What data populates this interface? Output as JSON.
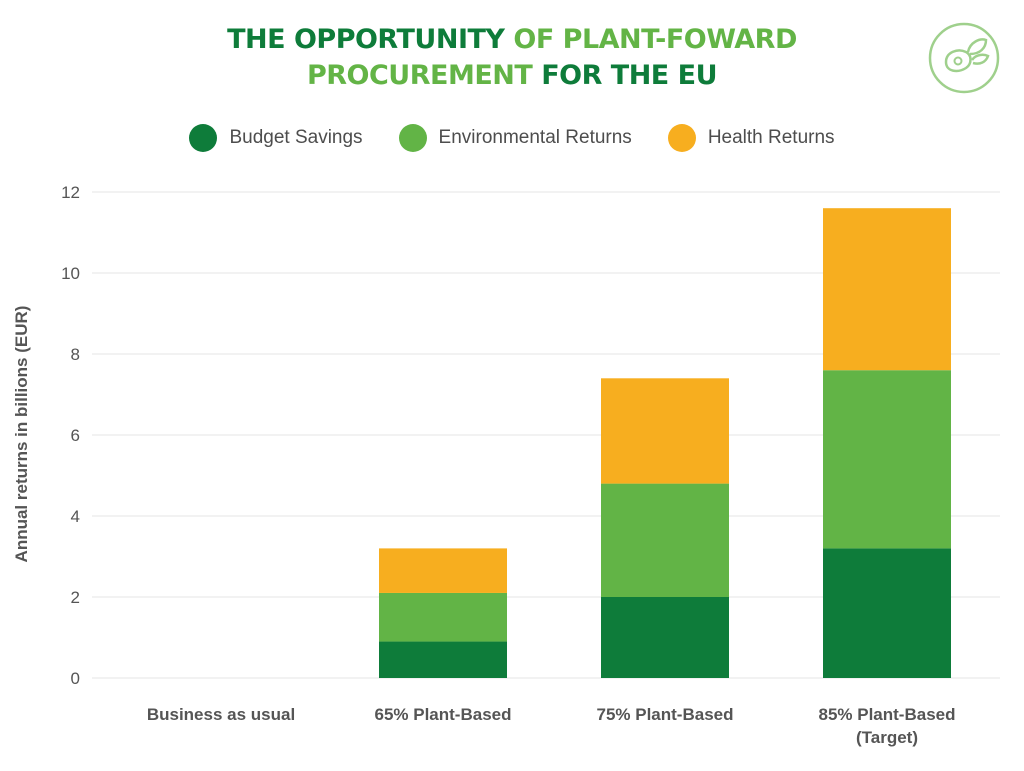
{
  "title": {
    "line1_part1": "THE OPPORTUNITY",
    "line1_part2": "OF PLANT-FOWARD",
    "line2_part1": "PROCUREMENT",
    "line2_part2": "FOR THE EU"
  },
  "colors": {
    "dark_green": "#0e7c3a",
    "light_green": "#62b446",
    "orange": "#f7ae1f",
    "grid": "#e6e6e6",
    "text": "#555555"
  },
  "logo": {
    "icon": "plant-leaf-meat-icon"
  },
  "chart_data": {
    "type": "bar",
    "stacked": true,
    "categories": [
      "Business as usual",
      "65% Plant-Based",
      "75% Plant-Based",
      "85% Plant-Based (Target)"
    ],
    "category_lines": [
      [
        "Business as usual"
      ],
      [
        "65% Plant-Based"
      ],
      [
        "75% Plant-Based"
      ],
      [
        "85% Plant-Based",
        "(Target)"
      ]
    ],
    "series": [
      {
        "name": "Budget Savings",
        "color": "#0e7c3a",
        "values": [
          0,
          0.9,
          2.0,
          3.2
        ]
      },
      {
        "name": "Environmental Returns",
        "color": "#62b446",
        "values": [
          0,
          1.2,
          2.8,
          4.4
        ]
      },
      {
        "name": "Health Returns",
        "color": "#f7ae1f",
        "values": [
          0,
          1.1,
          2.6,
          4.0
        ]
      }
    ],
    "ylabel": "Annual returns in billions (EUR)",
    "xlabel": "",
    "ylim": [
      0,
      12
    ],
    "yticks": [
      0,
      2,
      4,
      6,
      8,
      10,
      12
    ],
    "grid": true,
    "legend_position": "top"
  }
}
